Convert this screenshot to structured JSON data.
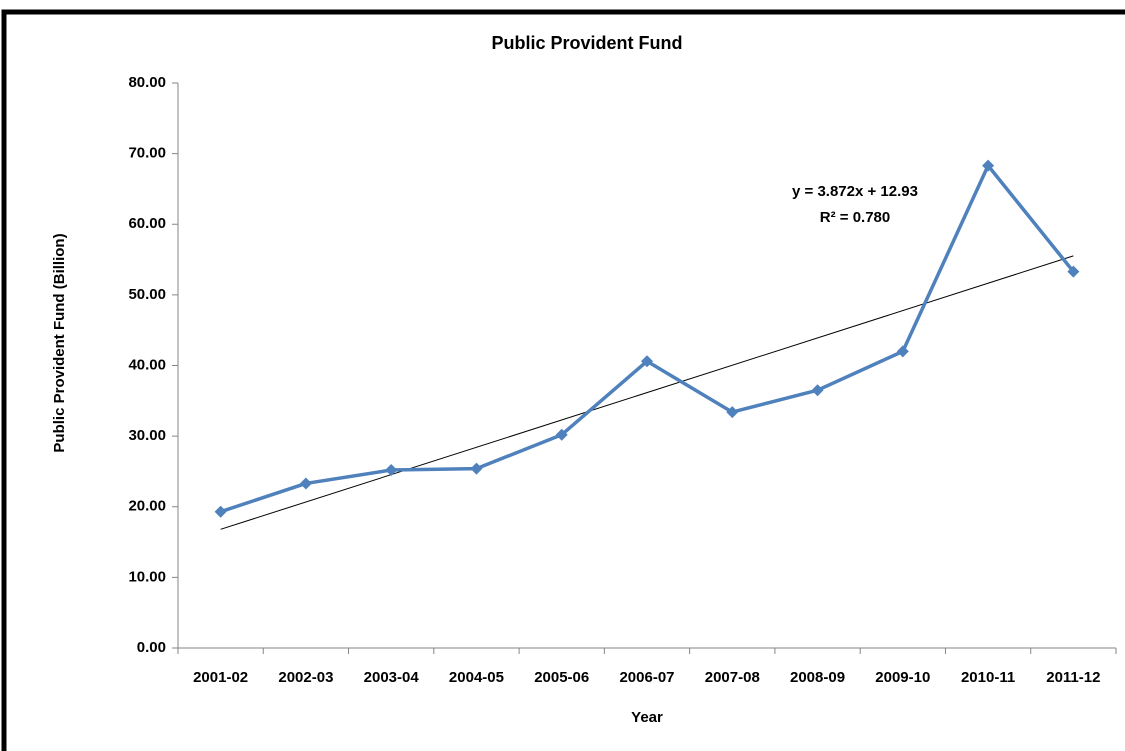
{
  "chart_data": {
    "type": "line",
    "title": "Public Provident Fund",
    "x_label": "Year",
    "y_label": "Public Provident Fund (Billion)",
    "categories": [
      "2001-02",
      "2002-03",
      "2003-04",
      "2004-05",
      "2005-06",
      "2006-07",
      "2007-08",
      "2008-09",
      "2009-10",
      "2010-11",
      "2011-12"
    ],
    "series": [
      {
        "name": "Public Provident Fund",
        "color": "#4f81bd",
        "values": [
          19.3,
          23.3,
          25.2,
          25.4,
          30.2,
          40.6,
          33.4,
          36.5,
          42.0,
          68.3,
          53.3
        ]
      }
    ],
    "trendline": {
      "slope": 3.872,
      "intercept": 12.93,
      "color": "#000000"
    },
    "annotations": [
      "y = 3.872x + 12.93",
      "R² = 0.780"
    ],
    "ylim": [
      0,
      80
    ],
    "yticks": [
      {
        "value": 0,
        "label": "0.00"
      },
      {
        "value": 10,
        "label": "10.00"
      },
      {
        "value": 20,
        "label": "20.00"
      },
      {
        "value": 30,
        "label": "30.00"
      },
      {
        "value": 40,
        "label": "40.00"
      },
      {
        "value": 50,
        "label": "50.00"
      },
      {
        "value": 60,
        "label": "60.00"
      },
      {
        "value": 70,
        "label": "70.00"
      },
      {
        "value": 80,
        "label": "80.00"
      }
    ],
    "grid": false
  }
}
